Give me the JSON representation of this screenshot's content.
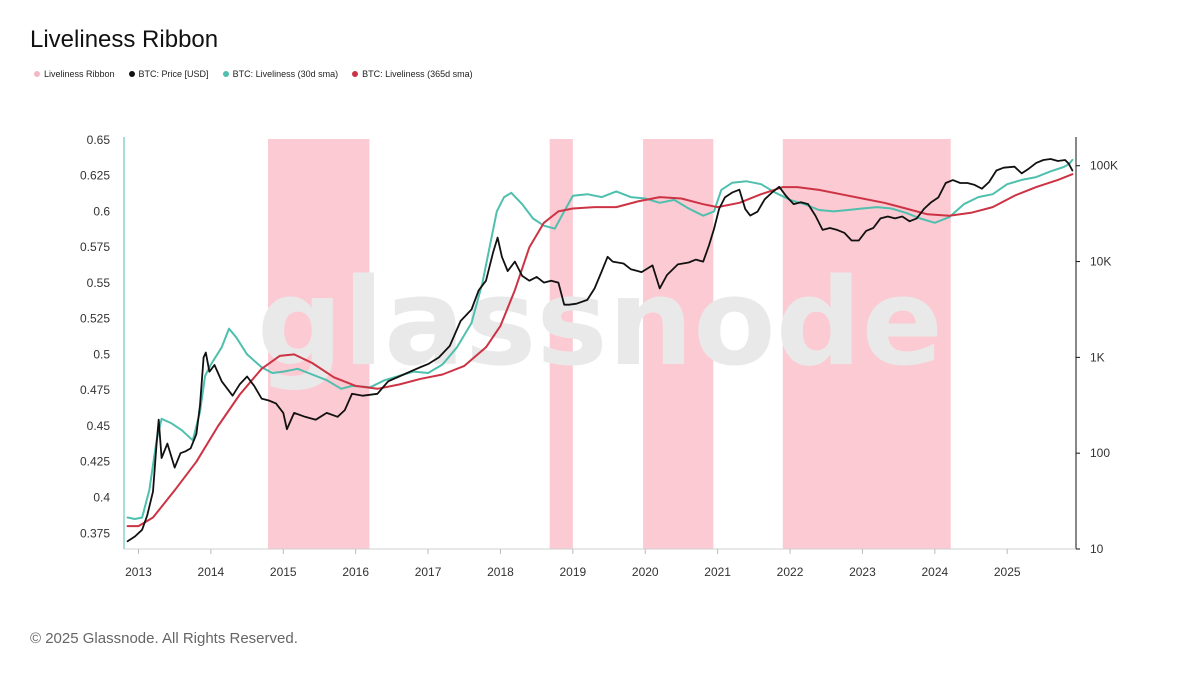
{
  "title": "Liveliness Ribbon",
  "footer": "© 2025 Glassnode. All Rights Reserved.",
  "watermark": "glassnode",
  "legend": [
    {
      "label": "Liveliness Ribbon",
      "color": "#f4b8c4"
    },
    {
      "label": "BTC: Price [USD]",
      "color": "#111111"
    },
    {
      "label": "BTC: Liveliness (30d sma)",
      "color": "#4fbfae"
    },
    {
      "label": "BTC: Liveliness (365d sma)",
      "color": "#cc3344"
    }
  ],
  "chart_data": {
    "type": "line",
    "title": "Liveliness Ribbon",
    "x_ticks": [
      "2013",
      "2014",
      "2015",
      "2016",
      "2017",
      "2018",
      "2019",
      "2020",
      "2021",
      "2022",
      "2023",
      "2024",
      "2025"
    ],
    "xlim": [
      2012.8,
      2025.95
    ],
    "y_left": {
      "ticks": [
        "0.65",
        "0.625",
        "0.6",
        "0.575",
        "0.55",
        "0.525",
        "0.5",
        "0.475",
        "0.45",
        "0.425",
        "0.4",
        "0.375"
      ],
      "ylim": [
        0.364,
        0.652
      ]
    },
    "y_right": {
      "ticks": [
        "100K",
        "10K",
        "1K",
        "100",
        "10"
      ],
      "log_ticks": [
        5,
        4,
        3,
        2,
        1
      ],
      "ylim_log": [
        1,
        5.3
      ]
    },
    "ribbon_periods": [
      [
        2014.79,
        2016.19
      ],
      [
        2018.68,
        2019.0
      ],
      [
        2019.97,
        2020.94
      ],
      [
        2021.9,
        2024.22
      ]
    ],
    "series": [
      {
        "name": "BTC: Liveliness (30d sma)",
        "axis": "left",
        "color": "#4fbfae",
        "points": [
          [
            2012.85,
            0.386
          ],
          [
            2012.95,
            0.385
          ],
          [
            2013.05,
            0.386
          ],
          [
            2013.15,
            0.405
          ],
          [
            2013.25,
            0.44
          ],
          [
            2013.32,
            0.455
          ],
          [
            2013.45,
            0.452
          ],
          [
            2013.6,
            0.447
          ],
          [
            2013.75,
            0.44
          ],
          [
            2013.85,
            0.46
          ],
          [
            2013.92,
            0.485
          ],
          [
            2014.0,
            0.493
          ],
          [
            2014.15,
            0.505
          ],
          [
            2014.25,
            0.518
          ],
          [
            2014.35,
            0.512
          ],
          [
            2014.5,
            0.5
          ],
          [
            2014.7,
            0.491
          ],
          [
            2014.85,
            0.487
          ],
          [
            2015.0,
            0.488
          ],
          [
            2015.2,
            0.49
          ],
          [
            2015.4,
            0.486
          ],
          [
            2015.6,
            0.482
          ],
          [
            2015.8,
            0.476
          ],
          [
            2015.95,
            0.478
          ],
          [
            2016.2,
            0.477
          ],
          [
            2016.4,
            0.482
          ],
          [
            2016.6,
            0.485
          ],
          [
            2016.8,
            0.488
          ],
          [
            2017.0,
            0.487
          ],
          [
            2017.2,
            0.493
          ],
          [
            2017.4,
            0.505
          ],
          [
            2017.6,
            0.522
          ],
          [
            2017.75,
            0.55
          ],
          [
            2017.85,
            0.575
          ],
          [
            2017.95,
            0.6
          ],
          [
            2018.05,
            0.61
          ],
          [
            2018.15,
            0.613
          ],
          [
            2018.3,
            0.605
          ],
          [
            2018.45,
            0.595
          ],
          [
            2018.6,
            0.59
          ],
          [
            2018.75,
            0.588
          ],
          [
            2018.88,
            0.6
          ],
          [
            2019.0,
            0.611
          ],
          [
            2019.2,
            0.612
          ],
          [
            2019.4,
            0.61
          ],
          [
            2019.6,
            0.614
          ],
          [
            2019.8,
            0.61
          ],
          [
            2020.0,
            0.609
          ],
          [
            2020.2,
            0.606
          ],
          [
            2020.4,
            0.608
          ],
          [
            2020.6,
            0.602
          ],
          [
            2020.8,
            0.597
          ],
          [
            2020.95,
            0.6
          ],
          [
            2021.05,
            0.615
          ],
          [
            2021.2,
            0.62
          ],
          [
            2021.4,
            0.621
          ],
          [
            2021.6,
            0.619
          ],
          [
            2021.8,
            0.613
          ],
          [
            2022.0,
            0.608
          ],
          [
            2022.2,
            0.605
          ],
          [
            2022.4,
            0.601
          ],
          [
            2022.6,
            0.6
          ],
          [
            2022.8,
            0.601
          ],
          [
            2023.0,
            0.602
          ],
          [
            2023.2,
            0.603
          ],
          [
            2023.4,
            0.602
          ],
          [
            2023.6,
            0.599
          ],
          [
            2023.8,
            0.595
          ],
          [
            2024.0,
            0.592
          ],
          [
            2024.2,
            0.596
          ],
          [
            2024.4,
            0.605
          ],
          [
            2024.6,
            0.61
          ],
          [
            2024.8,
            0.612
          ],
          [
            2025.0,
            0.619
          ],
          [
            2025.2,
            0.622
          ],
          [
            2025.4,
            0.624
          ],
          [
            2025.6,
            0.628
          ],
          [
            2025.78,
            0.631
          ],
          [
            2025.85,
            0.633
          ],
          [
            2025.9,
            0.636
          ]
        ]
      },
      {
        "name": "BTC: Liveliness (365d sma)",
        "axis": "left",
        "color": "#cc3344",
        "points": [
          [
            2012.85,
            0.38
          ],
          [
            2013.0,
            0.38
          ],
          [
            2013.2,
            0.386
          ],
          [
            2013.5,
            0.405
          ],
          [
            2013.8,
            0.425
          ],
          [
            2014.1,
            0.45
          ],
          [
            2014.4,
            0.472
          ],
          [
            2014.7,
            0.49
          ],
          [
            2014.95,
            0.499
          ],
          [
            2015.15,
            0.5
          ],
          [
            2015.4,
            0.494
          ],
          [
            2015.7,
            0.484
          ],
          [
            2016.0,
            0.478
          ],
          [
            2016.3,
            0.476
          ],
          [
            2016.6,
            0.479
          ],
          [
            2016.9,
            0.483
          ],
          [
            2017.2,
            0.486
          ],
          [
            2017.5,
            0.492
          ],
          [
            2017.8,
            0.505
          ],
          [
            2018.0,
            0.52
          ],
          [
            2018.2,
            0.545
          ],
          [
            2018.4,
            0.575
          ],
          [
            2018.6,
            0.592
          ],
          [
            2018.8,
            0.6
          ],
          [
            2019.0,
            0.602
          ],
          [
            2019.3,
            0.603
          ],
          [
            2019.6,
            0.603
          ],
          [
            2019.9,
            0.607
          ],
          [
            2020.2,
            0.61
          ],
          [
            2020.5,
            0.609
          ],
          [
            2020.8,
            0.605
          ],
          [
            2021.0,
            0.603
          ],
          [
            2021.3,
            0.606
          ],
          [
            2021.6,
            0.612
          ],
          [
            2021.9,
            0.617
          ],
          [
            2022.1,
            0.617
          ],
          [
            2022.4,
            0.615
          ],
          [
            2022.7,
            0.612
          ],
          [
            2023.0,
            0.609
          ],
          [
            2023.3,
            0.606
          ],
          [
            2023.6,
            0.602
          ],
          [
            2023.9,
            0.598
          ],
          [
            2024.2,
            0.597
          ],
          [
            2024.5,
            0.599
          ],
          [
            2024.8,
            0.603
          ],
          [
            2025.1,
            0.611
          ],
          [
            2025.4,
            0.617
          ],
          [
            2025.7,
            0.622
          ],
          [
            2025.9,
            0.626
          ]
        ]
      },
      {
        "name": "BTC: Price [USD]",
        "axis": "right_log",
        "color": "#111111",
        "points": [
          [
            2012.85,
            1.08
          ],
          [
            2012.95,
            1.13
          ],
          [
            2013.05,
            1.2
          ],
          [
            2013.12,
            1.35
          ],
          [
            2013.2,
            1.6
          ],
          [
            2013.25,
            2.1
          ],
          [
            2013.28,
            2.35
          ],
          [
            2013.32,
            1.95
          ],
          [
            2013.4,
            2.1
          ],
          [
            2013.5,
            1.85
          ],
          [
            2013.58,
            2.0
          ],
          [
            2013.65,
            2.02
          ],
          [
            2013.72,
            2.05
          ],
          [
            2013.8,
            2.2
          ],
          [
            2013.85,
            2.5
          ],
          [
            2013.9,
            3.0
          ],
          [
            2013.93,
            3.05
          ],
          [
            2013.98,
            2.85
          ],
          [
            2014.05,
            2.92
          ],
          [
            2014.15,
            2.75
          ],
          [
            2014.3,
            2.6
          ],
          [
            2014.4,
            2.72
          ],
          [
            2014.5,
            2.8
          ],
          [
            2014.6,
            2.7
          ],
          [
            2014.7,
            2.57
          ],
          [
            2014.8,
            2.55
          ],
          [
            2014.9,
            2.52
          ],
          [
            2015.0,
            2.42
          ],
          [
            2015.05,
            2.25
          ],
          [
            2015.15,
            2.42
          ],
          [
            2015.3,
            2.38
          ],
          [
            2015.45,
            2.35
          ],
          [
            2015.6,
            2.42
          ],
          [
            2015.75,
            2.38
          ],
          [
            2015.85,
            2.45
          ],
          [
            2015.95,
            2.62
          ],
          [
            2016.1,
            2.6
          ],
          [
            2016.3,
            2.62
          ],
          [
            2016.45,
            2.75
          ],
          [
            2016.6,
            2.8
          ],
          [
            2016.75,
            2.85
          ],
          [
            2016.9,
            2.9
          ],
          [
            2017.0,
            2.93
          ],
          [
            2017.15,
            3.0
          ],
          [
            2017.3,
            3.12
          ],
          [
            2017.45,
            3.38
          ],
          [
            2017.6,
            3.5
          ],
          [
            2017.7,
            3.7
          ],
          [
            2017.8,
            3.8
          ],
          [
            2017.9,
            4.1
          ],
          [
            2017.96,
            4.25
          ],
          [
            2018.02,
            4.05
          ],
          [
            2018.1,
            3.9
          ],
          [
            2018.2,
            4.0
          ],
          [
            2018.3,
            3.85
          ],
          [
            2018.4,
            3.8
          ],
          [
            2018.5,
            3.84
          ],
          [
            2018.6,
            3.78
          ],
          [
            2018.7,
            3.8
          ],
          [
            2018.8,
            3.78
          ],
          [
            2018.88,
            3.55
          ],
          [
            2018.95,
            3.55
          ],
          [
            2019.05,
            3.56
          ],
          [
            2019.2,
            3.6
          ],
          [
            2019.3,
            3.72
          ],
          [
            2019.4,
            3.9
          ],
          [
            2019.48,
            4.05
          ],
          [
            2019.55,
            4.0
          ],
          [
            2019.7,
            3.98
          ],
          [
            2019.8,
            3.92
          ],
          [
            2019.95,
            3.89
          ],
          [
            2020.1,
            3.96
          ],
          [
            2020.2,
            3.72
          ],
          [
            2020.3,
            3.86
          ],
          [
            2020.45,
            3.97
          ],
          [
            2020.6,
            3.99
          ],
          [
            2020.7,
            4.02
          ],
          [
            2020.8,
            4.0
          ],
          [
            2020.88,
            4.17
          ],
          [
            2020.95,
            4.34
          ],
          [
            2021.02,
            4.55
          ],
          [
            2021.1,
            4.67
          ],
          [
            2021.2,
            4.72
          ],
          [
            2021.3,
            4.75
          ],
          [
            2021.38,
            4.55
          ],
          [
            2021.45,
            4.48
          ],
          [
            2021.55,
            4.52
          ],
          [
            2021.65,
            4.65
          ],
          [
            2021.75,
            4.72
          ],
          [
            2021.85,
            4.78
          ],
          [
            2021.95,
            4.68
          ],
          [
            2022.05,
            4.6
          ],
          [
            2022.15,
            4.62
          ],
          [
            2022.25,
            4.6
          ],
          [
            2022.35,
            4.48
          ],
          [
            2022.45,
            4.33
          ],
          [
            2022.55,
            4.35
          ],
          [
            2022.65,
            4.33
          ],
          [
            2022.75,
            4.3
          ],
          [
            2022.85,
            4.22
          ],
          [
            2022.95,
            4.22
          ],
          [
            2023.05,
            4.32
          ],
          [
            2023.15,
            4.35
          ],
          [
            2023.25,
            4.45
          ],
          [
            2023.35,
            4.47
          ],
          [
            2023.45,
            4.45
          ],
          [
            2023.55,
            4.47
          ],
          [
            2023.65,
            4.42
          ],
          [
            2023.75,
            4.45
          ],
          [
            2023.85,
            4.55
          ],
          [
            2023.95,
            4.62
          ],
          [
            2024.05,
            4.67
          ],
          [
            2024.15,
            4.82
          ],
          [
            2024.25,
            4.85
          ],
          [
            2024.35,
            4.82
          ],
          [
            2024.45,
            4.82
          ],
          [
            2024.55,
            4.8
          ],
          [
            2024.65,
            4.76
          ],
          [
            2024.75,
            4.83
          ],
          [
            2024.85,
            4.95
          ],
          [
            2024.95,
            4.98
          ],
          [
            2025.1,
            4.99
          ],
          [
            2025.2,
            4.92
          ],
          [
            2025.3,
            4.97
          ],
          [
            2025.4,
            5.03
          ],
          [
            2025.5,
            5.06
          ],
          [
            2025.6,
            5.07
          ],
          [
            2025.7,
            5.05
          ],
          [
            2025.8,
            5.06
          ],
          [
            2025.85,
            5.02
          ],
          [
            2025.9,
            4.95
          ]
        ]
      }
    ]
  }
}
